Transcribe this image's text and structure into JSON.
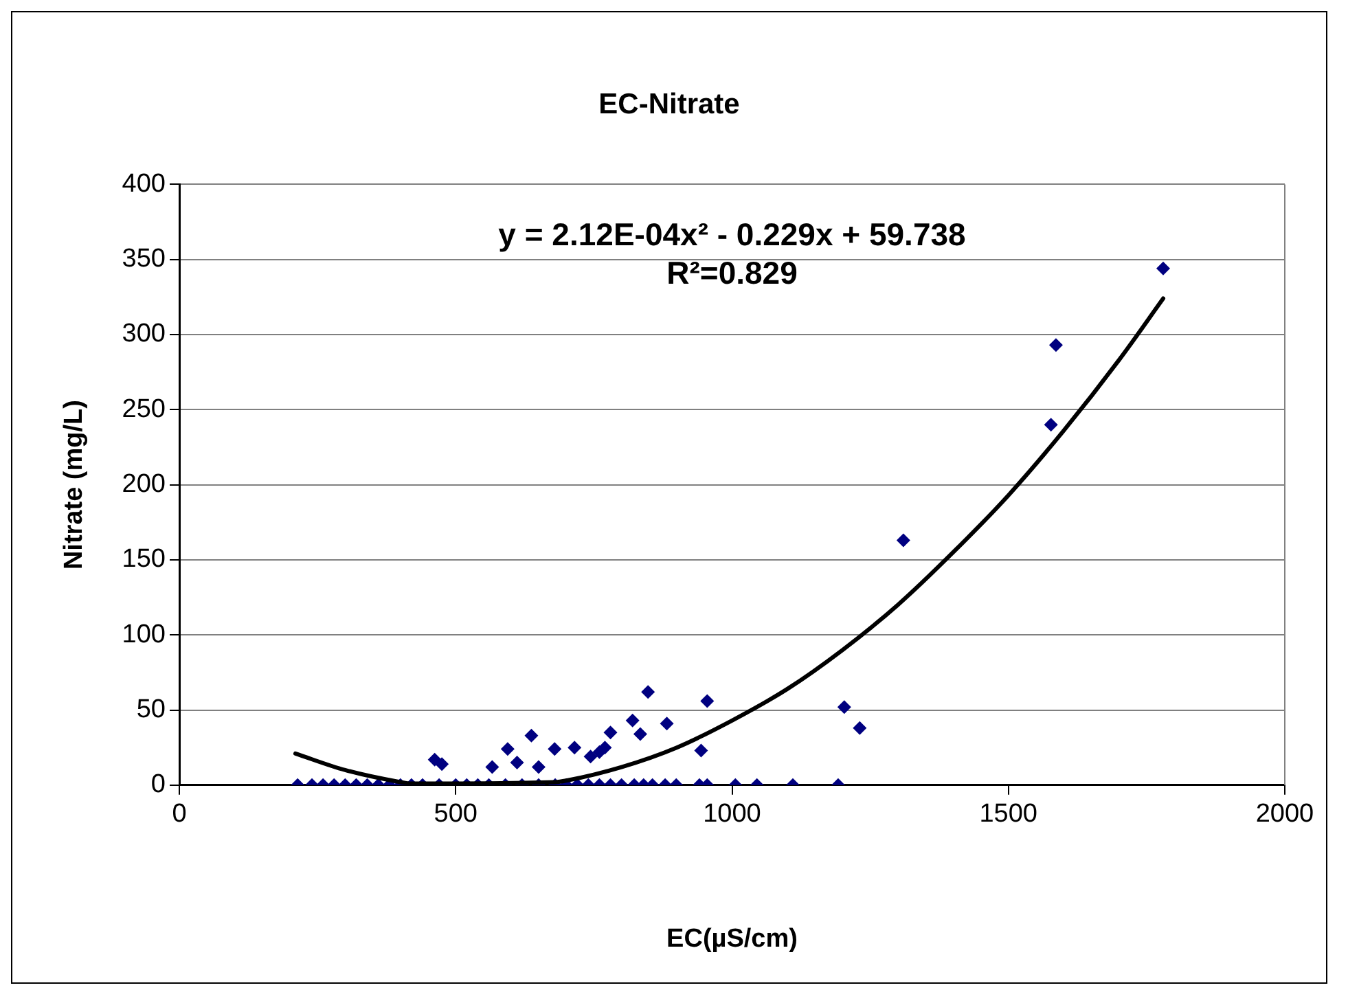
{
  "chart_data": {
    "type": "scatter",
    "title": "EC-Nitrate",
    "xlabel": "EC(µS/cm)",
    "ylabel": "Nitrate (mg/L)",
    "annotations": [
      "y = 2.12E-04x² - 0.229x + 59.738",
      "R²=0.829"
    ],
    "xlim": [
      0,
      2000
    ],
    "xticks": [
      0,
      500,
      1000,
      1500,
      2000
    ],
    "ylim": [
      0,
      400
    ],
    "yticks": [
      0,
      50,
      100,
      150,
      200,
      250,
      300,
      350,
      400
    ],
    "grid": "y",
    "legend": false,
    "marker": "diamond",
    "series": [
      {
        "type": "scatter",
        "color": "#000080",
        "x": [
          214,
          240,
          260,
          280,
          300,
          320,
          340,
          360,
          380,
          400,
          420,
          440,
          470,
          500,
          520,
          540,
          560,
          590,
          620,
          650,
          680,
          700,
          720,
          740,
          760,
          780,
          800,
          823,
          840,
          856,
          879,
          899,
          941,
          955,
          1006,
          1045,
          1110,
          1192,
          462,
          475,
          566,
          594,
          611,
          637,
          650,
          679,
          715,
          744,
          760,
          770,
          780,
          820,
          834,
          848,
          882,
          944,
          955,
          1203,
          1231,
          1310,
          1577,
          1586,
          1780
        ],
        "values": [
          0,
          0,
          0,
          0,
          0,
          0,
          0,
          0,
          0,
          0,
          0,
          0,
          0,
          0,
          0,
          0,
          0,
          0,
          0,
          0,
          0,
          0,
          0,
          0,
          0,
          0,
          0,
          0,
          0,
          0,
          0,
          0,
          0,
          0,
          0,
          0,
          0,
          0,
          17,
          14,
          12,
          24,
          15,
          33,
          12,
          24,
          25,
          19,
          22,
          25,
          35,
          43,
          34,
          62,
          41,
          23,
          56,
          52,
          38,
          163,
          240,
          293,
          344
        ]
      },
      {
        "type": "line",
        "color": "#000000",
        "line_style": "solid",
        "marker": "none",
        "x": [
          210,
          300,
          400,
          420,
          680,
          700,
          800,
          900,
          1000,
          1100,
          1200,
          1300,
          1400,
          1500,
          1600,
          1700,
          1780
        ],
        "values": [
          21,
          10,
          2,
          1,
          2,
          3,
          12,
          25,
          43,
          64,
          90,
          120,
          155,
          193,
          236,
          283,
          324
        ]
      }
    ]
  }
}
